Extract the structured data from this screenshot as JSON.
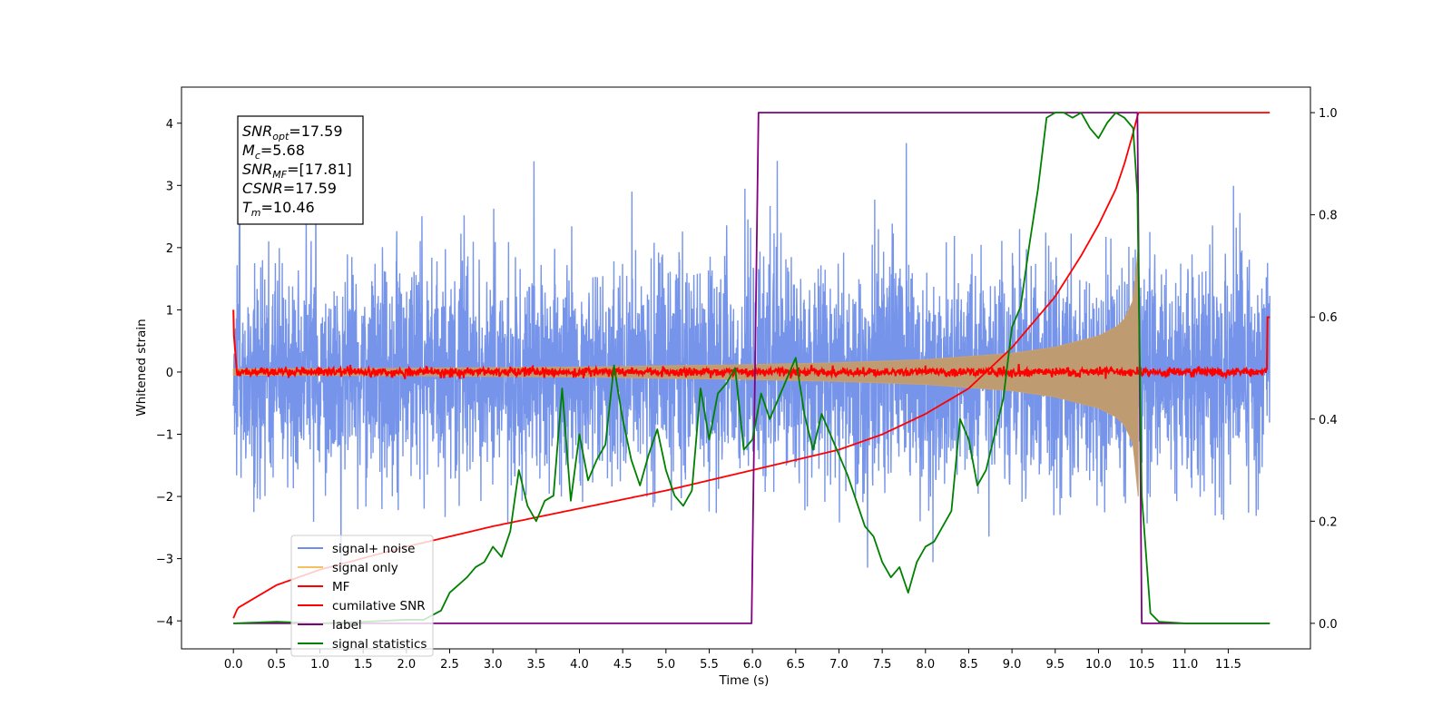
{
  "chart_data": {
    "type": "line",
    "xlabel": "Time (s)",
    "ylabel": "Whitened strain",
    "xlim": [
      -0.6,
      12.45
    ],
    "ylim": [
      -4.45,
      4.58
    ],
    "y2lim": [
      -0.05,
      1.05
    ],
    "x_ticks": [
      "0.0",
      "0.5",
      "1.0",
      "1.5",
      "2.0",
      "2.5",
      "3.0",
      "3.5",
      "4.0",
      "4.5",
      "5.0",
      "5.5",
      "6.0",
      "6.5",
      "7.0",
      "7.5",
      "8.0",
      "8.5",
      "9.0",
      "9.5",
      "10.0",
      "10.5",
      "11.0",
      "11.5"
    ],
    "y_ticks": [
      "−4",
      "−3",
      "−2",
      "−1",
      "0",
      "1",
      "2",
      "3",
      "4"
    ],
    "y2_ticks": [
      "0.0",
      "0.2",
      "0.4",
      "0.6",
      "0.8",
      "1.0"
    ],
    "grid": false,
    "legend_position": "lower left",
    "annotation_box": [
      {
        "name": "SNR",
        "sub": "opt",
        "value": "=17.59"
      },
      {
        "name": "M",
        "sub": "c",
        "value": "=5.68"
      },
      {
        "name": "SNR",
        "sub": "MF",
        "value": "=[17.81]"
      },
      {
        "name": "CSNR",
        "sub": "",
        "value": "=17.59"
      },
      {
        "name": "T",
        "sub": "m",
        "value": "=10.46"
      }
    ],
    "series": [
      {
        "name": "signal+ noise",
        "color": "#6f8ee8",
        "axis": "left",
        "kind": "noise",
        "sigma": 1.0,
        "x_range": [
          0,
          11.98
        ],
        "peaks_max": 4.17,
        "peaks_min": -4.0
      },
      {
        "name": "signal only",
        "color": "#f5c15e",
        "axis": "left",
        "kind": "chirp_envelope",
        "x_range": [
          0,
          10.46
        ],
        "envelope": {
          "x": [
            0.0,
            2.0,
            4.0,
            6.0,
            7.0,
            8.0,
            9.0,
            9.5,
            10.0,
            10.2,
            10.3,
            10.4,
            10.46
          ],
          "y": [
            0.05,
            0.06,
            0.08,
            0.12,
            0.15,
            0.2,
            0.3,
            0.4,
            0.58,
            0.72,
            0.85,
            1.15,
            2.0
          ]
        }
      },
      {
        "name": "MF",
        "color": "#ff0000",
        "axis": "left",
        "kind": "noise_small",
        "x_range": [
          0,
          11.98
        ],
        "sigma": 0.035,
        "start_value": 1.0,
        "end_value": 0.88
      },
      {
        "name": "cumilative SNR",
        "color": "#ff0000",
        "axis": "right",
        "x": [
          0.0,
          0.05,
          0.5,
          1.0,
          2.0,
          3.0,
          4.0,
          5.0,
          6.0,
          7.0,
          7.5,
          8.0,
          8.5,
          9.0,
          9.5,
          9.8,
          10.0,
          10.2,
          10.3,
          10.4,
          10.46,
          11.98
        ],
        "y": [
          0.01,
          0.03,
          0.075,
          0.105,
          0.15,
          0.19,
          0.225,
          0.26,
          0.3,
          0.34,
          0.37,
          0.41,
          0.46,
          0.54,
          0.64,
          0.72,
          0.78,
          0.85,
          0.9,
          0.96,
          1.0,
          1.0
        ]
      },
      {
        "name": "label",
        "color": "#800080",
        "axis": "right",
        "x": [
          0.0,
          5.99,
          6.07,
          10.45,
          10.5,
          11.98
        ],
        "y": [
          0.0,
          0.0,
          1.0,
          1.0,
          0.0,
          0.0
        ]
      },
      {
        "name": "signal statistics",
        "color": "#008000",
        "axis": "right",
        "x": [
          0.0,
          0.5,
          1.0,
          1.5,
          2.0,
          2.2,
          2.4,
          2.5,
          2.6,
          2.7,
          2.8,
          2.9,
          3.0,
          3.1,
          3.2,
          3.3,
          3.4,
          3.5,
          3.6,
          3.7,
          3.8,
          3.9,
          4.0,
          4.1,
          4.2,
          4.3,
          4.4,
          4.45,
          4.5,
          4.6,
          4.7,
          4.8,
          4.9,
          5.0,
          5.1,
          5.2,
          5.3,
          5.4,
          5.5,
          5.6,
          5.7,
          5.8,
          5.9,
          6.0,
          6.1,
          6.2,
          6.3,
          6.4,
          6.5,
          6.6,
          6.7,
          6.8,
          6.9,
          7.0,
          7.1,
          7.2,
          7.3,
          7.4,
          7.5,
          7.6,
          7.7,
          7.8,
          7.9,
          8.0,
          8.1,
          8.2,
          8.3,
          8.4,
          8.5,
          8.6,
          8.7,
          8.8,
          8.9,
          9.0,
          9.1,
          9.2,
          9.3,
          9.4,
          9.5,
          9.6,
          9.7,
          9.8,
          9.9,
          10.0,
          10.1,
          10.2,
          10.3,
          10.4,
          10.45,
          10.5,
          10.6,
          10.7,
          11.0,
          11.98
        ],
        "y": [
          0.0,
          0.003,
          0.0,
          0.003,
          0.007,
          0.007,
          0.025,
          0.06,
          0.075,
          0.09,
          0.11,
          0.12,
          0.15,
          0.13,
          0.18,
          0.3,
          0.23,
          0.2,
          0.24,
          0.25,
          0.46,
          0.24,
          0.37,
          0.28,
          0.32,
          0.35,
          0.505,
          0.45,
          0.4,
          0.32,
          0.27,
          0.33,
          0.38,
          0.3,
          0.25,
          0.23,
          0.26,
          0.46,
          0.36,
          0.45,
          0.47,
          0.5,
          0.34,
          0.36,
          0.45,
          0.4,
          0.44,
          0.48,
          0.52,
          0.41,
          0.34,
          0.41,
          0.37,
          0.33,
          0.29,
          0.24,
          0.19,
          0.17,
          0.12,
          0.09,
          0.11,
          0.06,
          0.12,
          0.15,
          0.16,
          0.19,
          0.22,
          0.4,
          0.36,
          0.27,
          0.3,
          0.37,
          0.44,
          0.58,
          0.62,
          0.74,
          0.85,
          0.99,
          1.0,
          1.0,
          0.99,
          1.0,
          0.97,
          0.95,
          0.98,
          1.0,
          0.99,
          0.97,
          0.84,
          0.25,
          0.02,
          0.003,
          0.0,
          0.0
        ]
      }
    ]
  }
}
